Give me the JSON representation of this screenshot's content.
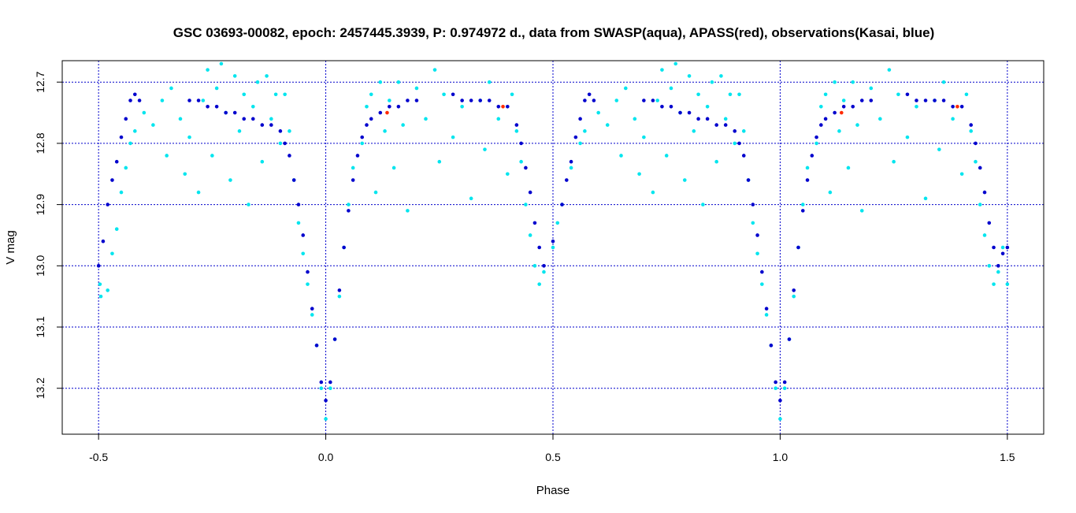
{
  "chart_data": {
    "type": "scatter",
    "title": "GSC 03693-00082, epoch: 2457445.3939, P: 0.974972 d., data from SWASP(aqua), APASS(red), observations(Kasai, blue)",
    "xlabel": "Phase",
    "ylabel": "V mag",
    "xlim": [
      -0.58,
      1.58
    ],
    "ylim": [
      13.275,
      12.665
    ],
    "y_inverted": true,
    "grid": true,
    "x_ticks": [
      -0.5,
      0.0,
      0.5,
      1.0,
      1.5
    ],
    "x_tick_labels": [
      "-0.5",
      "0.0",
      "0.5",
      "1.0",
      "1.5"
    ],
    "y_ticks": [
      12.7,
      12.8,
      12.9,
      13.0,
      13.1,
      13.2
    ],
    "y_tick_labels": [
      "12.7",
      "12.8",
      "12.9",
      "13.0",
      "13.1",
      "13.2"
    ],
    "colors": {
      "swasp": "#00e5ee",
      "kasai": "#0000cd",
      "apass": "#ff2a00",
      "grid": "#0000cc",
      "frame": "#000000"
    },
    "series": [
      {
        "color": "#00e5ee",
        "points": [
          [
            -0.497,
            13.03
          ],
          [
            -0.495,
            13.05
          ],
          [
            -0.48,
            13.04
          ],
          [
            -0.47,
            12.98
          ],
          [
            -0.46,
            12.94
          ],
          [
            -0.45,
            12.88
          ],
          [
            -0.44,
            12.84
          ],
          [
            -0.43,
            12.8
          ],
          [
            -0.42,
            12.78
          ],
          [
            -0.4,
            12.75
          ],
          [
            -0.38,
            12.77
          ],
          [
            -0.36,
            12.73
          ],
          [
            -0.35,
            12.82
          ],
          [
            -0.34,
            12.71
          ],
          [
            -0.32,
            12.76
          ],
          [
            -0.31,
            12.85
          ],
          [
            -0.3,
            12.79
          ],
          [
            -0.28,
            12.88
          ],
          [
            -0.27,
            12.73
          ],
          [
            -0.26,
            12.68
          ],
          [
            -0.25,
            12.82
          ],
          [
            -0.24,
            12.71
          ],
          [
            -0.23,
            12.67
          ],
          [
            -0.22,
            12.75
          ],
          [
            -0.21,
            12.86
          ],
          [
            -0.2,
            12.69
          ],
          [
            -0.19,
            12.78
          ],
          [
            -0.18,
            12.72
          ],
          [
            -0.17,
            12.9
          ],
          [
            -0.16,
            12.74
          ],
          [
            -0.15,
            12.7
          ],
          [
            -0.14,
            12.83
          ],
          [
            -0.13,
            12.69
          ],
          [
            -0.12,
            12.76
          ],
          [
            -0.11,
            12.72
          ],
          [
            -0.1,
            12.8
          ],
          [
            -0.09,
            12.72
          ],
          [
            -0.08,
            12.78
          ],
          [
            -0.07,
            12.86
          ],
          [
            -0.06,
            12.93
          ],
          [
            -0.05,
            12.98
          ],
          [
            -0.04,
            13.03
          ],
          [
            -0.03,
            13.08
          ],
          [
            -0.02,
            13.13
          ],
          [
            -0.01,
            13.2
          ],
          [
            0.0,
            13.25
          ],
          [
            0.01,
            13.2
          ],
          [
            0.02,
            13.12
          ],
          [
            0.03,
            13.05
          ],
          [
            0.04,
            12.97
          ],
          [
            0.05,
            12.9
          ],
          [
            0.06,
            12.84
          ],
          [
            0.08,
            12.8
          ],
          [
            0.09,
            12.74
          ],
          [
            0.1,
            12.72
          ],
          [
            0.11,
            12.88
          ],
          [
            0.12,
            12.7
          ],
          [
            0.13,
            12.78
          ],
          [
            0.14,
            12.73
          ],
          [
            0.15,
            12.84
          ],
          [
            0.16,
            12.7
          ],
          [
            0.17,
            12.77
          ],
          [
            0.18,
            12.91
          ],
          [
            0.2,
            12.71
          ],
          [
            0.22,
            12.76
          ],
          [
            0.24,
            12.68
          ],
          [
            0.25,
            12.83
          ],
          [
            0.26,
            12.72
          ],
          [
            0.28,
            12.79
          ],
          [
            0.3,
            12.74
          ],
          [
            0.32,
            12.89
          ],
          [
            0.34,
            12.73
          ],
          [
            0.35,
            12.81
          ],
          [
            0.36,
            12.7
          ],
          [
            0.38,
            12.76
          ],
          [
            0.4,
            12.85
          ],
          [
            0.41,
            12.72
          ],
          [
            0.42,
            12.78
          ],
          [
            0.43,
            12.83
          ],
          [
            0.44,
            12.9
          ],
          [
            0.45,
            12.95
          ],
          [
            0.46,
            13.0
          ],
          [
            0.47,
            13.03
          ],
          [
            0.48,
            13.01
          ],
          [
            0.5,
            12.97
          ],
          [
            0.51,
            12.93
          ],
          [
            0.52,
            12.9
          ],
          [
            0.54,
            12.84
          ],
          [
            0.56,
            12.8
          ],
          [
            0.57,
            12.78
          ],
          [
            0.6,
            12.75
          ],
          [
            0.62,
            12.77
          ],
          [
            0.64,
            12.73
          ],
          [
            0.65,
            12.82
          ],
          [
            0.66,
            12.71
          ],
          [
            0.68,
            12.76
          ],
          [
            0.69,
            12.85
          ],
          [
            0.7,
            12.79
          ],
          [
            0.72,
            12.88
          ],
          [
            0.73,
            12.73
          ],
          [
            0.74,
            12.68
          ],
          [
            0.75,
            12.82
          ],
          [
            0.76,
            12.71
          ],
          [
            0.77,
            12.67
          ],
          [
            0.78,
            12.75
          ],
          [
            0.79,
            12.86
          ],
          [
            0.8,
            12.69
          ],
          [
            0.81,
            12.78
          ],
          [
            0.82,
            12.72
          ],
          [
            0.83,
            12.9
          ],
          [
            0.84,
            12.74
          ],
          [
            0.85,
            12.7
          ],
          [
            0.86,
            12.83
          ],
          [
            0.87,
            12.69
          ],
          [
            0.88,
            12.76
          ],
          [
            0.89,
            12.72
          ],
          [
            0.9,
            12.8
          ],
          [
            0.91,
            12.72
          ],
          [
            0.92,
            12.78
          ],
          [
            0.93,
            12.86
          ],
          [
            0.94,
            12.93
          ],
          [
            0.95,
            12.98
          ],
          [
            0.96,
            13.03
          ],
          [
            0.97,
            13.08
          ],
          [
            0.98,
            13.13
          ],
          [
            0.99,
            13.2
          ],
          [
            1.0,
            13.25
          ],
          [
            1.01,
            13.2
          ],
          [
            1.02,
            13.12
          ],
          [
            1.03,
            13.05
          ],
          [
            1.04,
            12.97
          ],
          [
            1.05,
            12.9
          ],
          [
            1.06,
            12.84
          ],
          [
            1.08,
            12.8
          ],
          [
            1.09,
            12.74
          ],
          [
            1.1,
            12.72
          ],
          [
            1.11,
            12.88
          ],
          [
            1.12,
            12.7
          ],
          [
            1.13,
            12.78
          ],
          [
            1.14,
            12.73
          ],
          [
            1.15,
            12.84
          ],
          [
            1.16,
            12.7
          ],
          [
            1.17,
            12.77
          ],
          [
            1.18,
            12.91
          ],
          [
            1.2,
            12.71
          ],
          [
            1.22,
            12.76
          ],
          [
            1.24,
            12.68
          ],
          [
            1.25,
            12.83
          ],
          [
            1.26,
            12.72
          ],
          [
            1.28,
            12.79
          ],
          [
            1.3,
            12.74
          ],
          [
            1.32,
            12.89
          ],
          [
            1.34,
            12.73
          ],
          [
            1.35,
            12.81
          ],
          [
            1.36,
            12.7
          ],
          [
            1.38,
            12.76
          ],
          [
            1.4,
            12.85
          ],
          [
            1.41,
            12.72
          ],
          [
            1.42,
            12.78
          ],
          [
            1.43,
            12.83
          ],
          [
            1.44,
            12.9
          ],
          [
            1.45,
            12.95
          ],
          [
            1.46,
            13.0
          ],
          [
            1.47,
            13.03
          ],
          [
            1.48,
            13.01
          ],
          [
            1.49,
            12.97
          ],
          [
            1.5,
            13.03
          ]
        ]
      },
      {
        "color": "#0000cd",
        "points": [
          [
            -0.5,
            13.0
          ],
          [
            -0.49,
            12.96
          ],
          [
            -0.48,
            12.9
          ],
          [
            -0.47,
            12.86
          ],
          [
            -0.46,
            12.83
          ],
          [
            -0.45,
            12.79
          ],
          [
            -0.44,
            12.76
          ],
          [
            -0.43,
            12.73
          ],
          [
            -0.42,
            12.72
          ],
          [
            -0.41,
            12.73
          ],
          [
            -0.3,
            12.73
          ],
          [
            -0.28,
            12.73
          ],
          [
            -0.26,
            12.74
          ],
          [
            -0.24,
            12.74
          ],
          [
            -0.22,
            12.75
          ],
          [
            -0.2,
            12.75
          ],
          [
            -0.18,
            12.76
          ],
          [
            -0.16,
            12.76
          ],
          [
            -0.14,
            12.77
          ],
          [
            -0.12,
            12.77
          ],
          [
            -0.1,
            12.78
          ],
          [
            -0.09,
            12.8
          ],
          [
            -0.08,
            12.82
          ],
          [
            -0.07,
            12.86
          ],
          [
            -0.06,
            12.9
          ],
          [
            -0.05,
            12.95
          ],
          [
            -0.04,
            13.01
          ],
          [
            -0.03,
            13.07
          ],
          [
            -0.02,
            13.13
          ],
          [
            -0.01,
            13.19
          ],
          [
            0.0,
            13.22
          ],
          [
            0.01,
            13.19
          ],
          [
            0.02,
            13.12
          ],
          [
            0.03,
            13.04
          ],
          [
            0.04,
            12.97
          ],
          [
            0.05,
            12.91
          ],
          [
            0.06,
            12.86
          ],
          [
            0.07,
            12.82
          ],
          [
            0.08,
            12.79
          ],
          [
            0.09,
            12.77
          ],
          [
            0.1,
            12.76
          ],
          [
            0.12,
            12.75
          ],
          [
            0.14,
            12.74
          ],
          [
            0.16,
            12.74
          ],
          [
            0.18,
            12.73
          ],
          [
            0.2,
            12.73
          ],
          [
            0.28,
            12.72
          ],
          [
            0.3,
            12.73
          ],
          [
            0.32,
            12.73
          ],
          [
            0.34,
            12.73
          ],
          [
            0.36,
            12.73
          ],
          [
            0.38,
            12.74
          ],
          [
            0.4,
            12.74
          ],
          [
            0.42,
            12.77
          ],
          [
            0.43,
            12.8
          ],
          [
            0.44,
            12.84
          ],
          [
            0.45,
            12.88
          ],
          [
            0.46,
            12.93
          ],
          [
            0.47,
            12.97
          ],
          [
            0.48,
            13.0
          ],
          [
            0.5,
            12.96
          ],
          [
            0.52,
            12.9
          ],
          [
            0.53,
            12.86
          ],
          [
            0.54,
            12.83
          ],
          [
            0.55,
            12.79
          ],
          [
            0.56,
            12.76
          ],
          [
            0.57,
            12.73
          ],
          [
            0.58,
            12.72
          ],
          [
            0.59,
            12.73
          ],
          [
            0.7,
            12.73
          ],
          [
            0.72,
            12.73
          ],
          [
            0.74,
            12.74
          ],
          [
            0.76,
            12.74
          ],
          [
            0.78,
            12.75
          ],
          [
            0.8,
            12.75
          ],
          [
            0.82,
            12.76
          ],
          [
            0.84,
            12.76
          ],
          [
            0.86,
            12.77
          ],
          [
            0.88,
            12.77
          ],
          [
            0.9,
            12.78
          ],
          [
            0.91,
            12.8
          ],
          [
            0.92,
            12.82
          ],
          [
            0.93,
            12.86
          ],
          [
            0.94,
            12.9
          ],
          [
            0.95,
            12.95
          ],
          [
            0.96,
            13.01
          ],
          [
            0.97,
            13.07
          ],
          [
            0.98,
            13.13
          ],
          [
            0.99,
            13.19
          ],
          [
            1.0,
            13.22
          ],
          [
            1.01,
            13.19
          ],
          [
            1.02,
            13.12
          ],
          [
            1.03,
            13.04
          ],
          [
            1.04,
            12.97
          ],
          [
            1.05,
            12.91
          ],
          [
            1.06,
            12.86
          ],
          [
            1.07,
            12.82
          ],
          [
            1.08,
            12.79
          ],
          [
            1.09,
            12.77
          ],
          [
            1.1,
            12.76
          ],
          [
            1.12,
            12.75
          ],
          [
            1.14,
            12.74
          ],
          [
            1.16,
            12.74
          ],
          [
            1.18,
            12.73
          ],
          [
            1.2,
            12.73
          ],
          [
            1.28,
            12.72
          ],
          [
            1.3,
            12.73
          ],
          [
            1.32,
            12.73
          ],
          [
            1.34,
            12.73
          ],
          [
            1.36,
            12.73
          ],
          [
            1.38,
            12.74
          ],
          [
            1.4,
            12.74
          ],
          [
            1.42,
            12.77
          ],
          [
            1.43,
            12.8
          ],
          [
            1.44,
            12.84
          ],
          [
            1.45,
            12.88
          ],
          [
            1.46,
            12.93
          ],
          [
            1.47,
            12.97
          ],
          [
            1.48,
            13.0
          ],
          [
            1.49,
            12.98
          ],
          [
            1.5,
            12.97
          ]
        ]
      },
      {
        "color": "#ff2a00",
        "points": [
          [
            0.135,
            12.75
          ],
          [
            0.39,
            12.74
          ],
          [
            1.135,
            12.75
          ],
          [
            1.39,
            12.74
          ]
        ]
      }
    ]
  }
}
